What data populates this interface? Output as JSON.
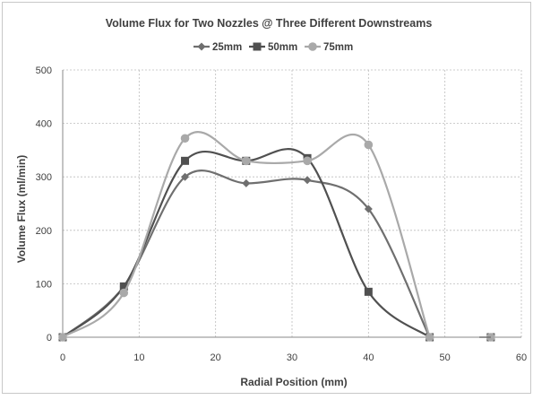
{
  "chart_data": {
    "type": "line",
    "title": "Volume Flux for Two Nozzles @ Three Different Downstreams",
    "xlabel": "Radial Position (mm)",
    "ylabel": "Volume Flux (ml/min)",
    "xlim": [
      0,
      60
    ],
    "ylim": [
      0,
      500
    ],
    "xticks": [
      0,
      10,
      20,
      30,
      40,
      50,
      60
    ],
    "yticks": [
      0,
      100,
      200,
      300,
      400,
      500
    ],
    "grid": true,
    "legend_position": "top",
    "smooth": true,
    "series": [
      {
        "name": "25mm",
        "color": "#6f6f6f",
        "marker": "diamond",
        "points": [
          [
            0,
            0
          ],
          [
            8,
            95
          ],
          [
            16,
            300
          ],
          [
            24,
            288
          ],
          [
            32,
            294
          ],
          [
            40,
            240
          ],
          [
            48,
            0
          ]
        ]
      },
      {
        "name": "50mm",
        "color": "#505050",
        "marker": "square",
        "points": [
          [
            0,
            0
          ],
          [
            8,
            95
          ],
          [
            16,
            330
          ],
          [
            24,
            330
          ],
          [
            32,
            335
          ],
          [
            40,
            85
          ],
          [
            48,
            0
          ]
        ]
      },
      {
        "name": "75mm",
        "color": "#a9a9a9",
        "marker": "circle",
        "points": [
          [
            0,
            0
          ],
          [
            8,
            83
          ],
          [
            16,
            372
          ],
          [
            24,
            330
          ],
          [
            32,
            330
          ],
          [
            40,
            360
          ],
          [
            48,
            0
          ]
        ]
      }
    ],
    "extra_points": [
      {
        "series": "50mm",
        "x": 56,
        "y": 0
      },
      {
        "series": "75mm",
        "x": 56,
        "y": 0
      }
    ]
  }
}
